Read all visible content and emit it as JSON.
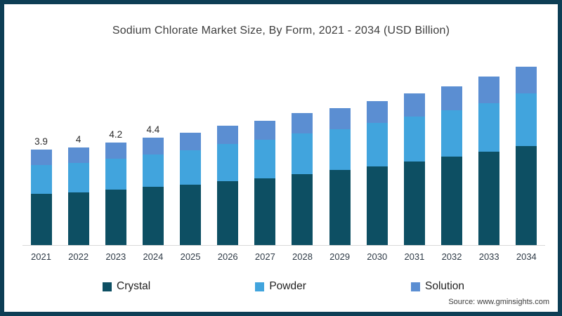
{
  "frame": {
    "border_color": "#0d3e55",
    "background": "#ffffff"
  },
  "title": "Sodium Chlorate Market Size, By Form, 2021 - 2034 (USD Billion)",
  "source": "Source: www.gminsights.com",
  "legend": [
    {
      "label": "Crystal",
      "color": "#0d4f63"
    },
    {
      "label": "Powder",
      "color": "#41a4dd"
    },
    {
      "label": "Solution",
      "color": "#5b8ed2"
    }
  ],
  "chart_data": {
    "type": "bar",
    "stacked": true,
    "title": "Sodium Chlorate Market Size, By Form, 2021 - 2034 (USD Billion)",
    "xlabel": "",
    "ylabel": "",
    "unit": "USD Billion",
    "ylim": [
      0,
      7.5
    ],
    "grid": false,
    "legend_position": "bottom",
    "categories": [
      "2021",
      "2022",
      "2023",
      "2024",
      "2025",
      "2026",
      "2027",
      "2028",
      "2029",
      "2030",
      "2031",
      "2032",
      "2033",
      "2034"
    ],
    "series": [
      {
        "name": "Crystal",
        "color": "#0d4f63",
        "values": [
          2.1,
          2.16,
          2.26,
          2.38,
          2.47,
          2.62,
          2.73,
          2.9,
          3.07,
          3.22,
          3.41,
          3.61,
          3.81,
          4.05
        ]
      },
      {
        "name": "Powder",
        "color": "#41a4dd",
        "values": [
          1.18,
          1.2,
          1.27,
          1.33,
          1.4,
          1.52,
          1.57,
          1.66,
          1.68,
          1.78,
          1.84,
          1.9,
          2.01,
          2.15
        ]
      },
      {
        "name": "Solution",
        "color": "#5b8ed2",
        "values": [
          0.62,
          0.64,
          0.67,
          0.69,
          0.73,
          0.76,
          0.8,
          0.84,
          0.85,
          0.9,
          0.95,
          0.99,
          1.08,
          1.1
        ]
      }
    ],
    "totals": [
      3.9,
      4.0,
      4.2,
      4.4,
      4.6,
      4.9,
      5.1,
      5.4,
      5.6,
      5.9,
      6.2,
      6.5,
      6.9,
      7.3
    ],
    "bar_labels": [
      "3.9",
      "4",
      "4.2",
      "4.4",
      "",
      "",
      "",
      "",
      "",
      "",
      "",
      "",
      "",
      ""
    ]
  }
}
